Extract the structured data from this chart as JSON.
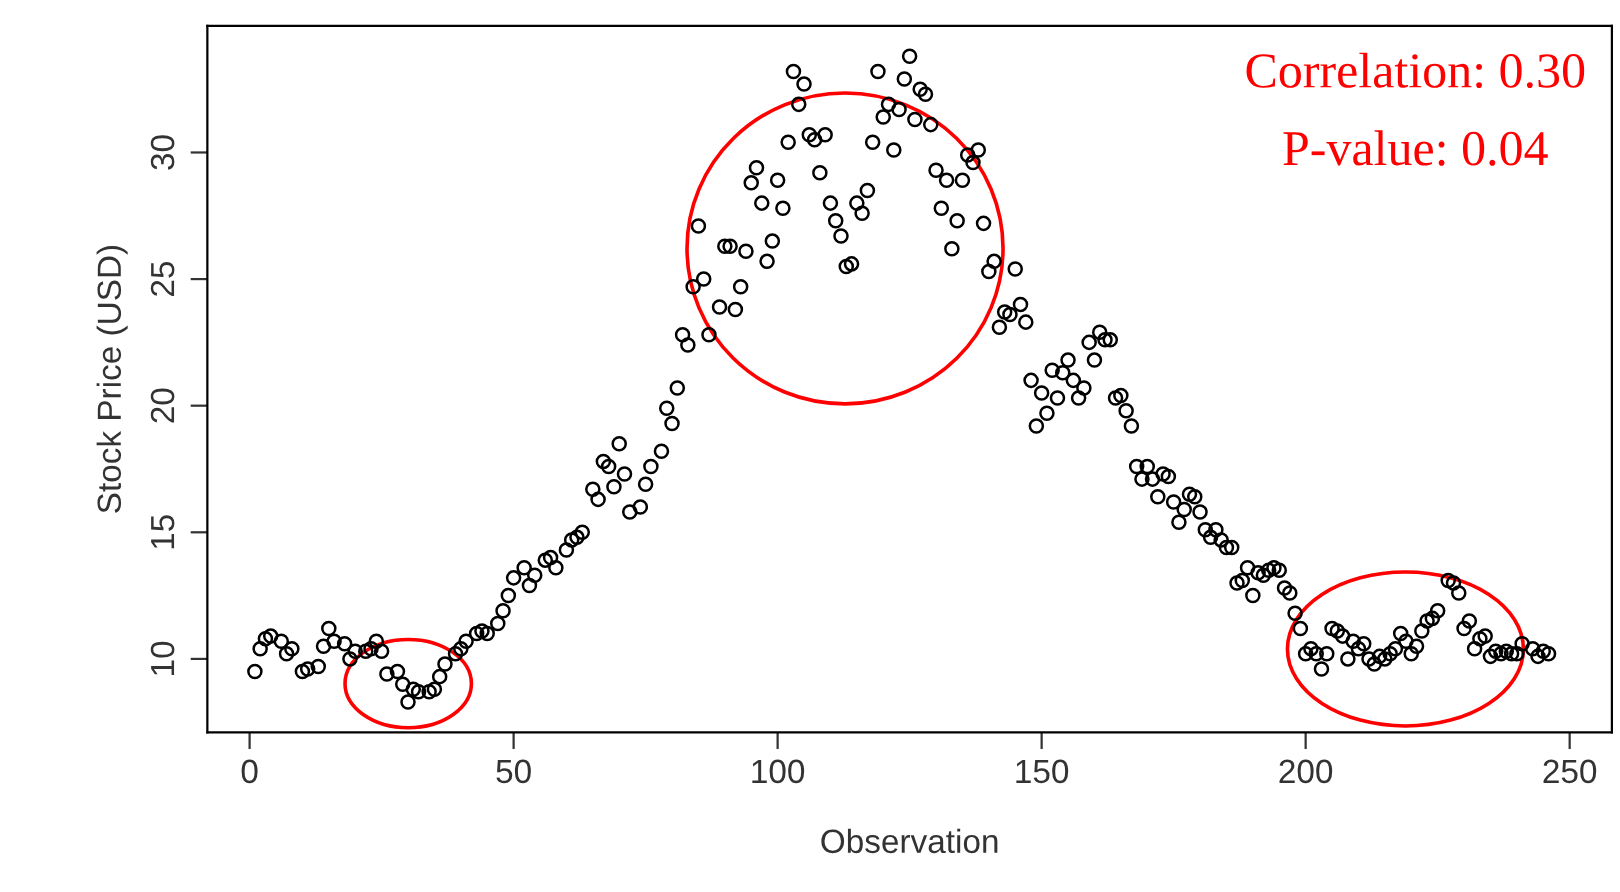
{
  "chart_data": {
    "type": "scatter",
    "xlabel": "Observation",
    "ylabel": "Stock Price (USD)",
    "annotations": [
      "Correlation: 0.30",
      "P-value: 0.04"
    ],
    "xlim": [
      -8,
      258
    ],
    "ylim": [
      7.1,
      35
    ],
    "xticks": [
      0,
      50,
      100,
      150,
      200,
      250
    ],
    "yticks": [
      10,
      15,
      20,
      25,
      30
    ],
    "marker": "circle",
    "grid": false,
    "series": [
      {
        "color": "#000000",
        "x": [
          1,
          2,
          3,
          4,
          6,
          7,
          8,
          10,
          11,
          13,
          14,
          15,
          16,
          18,
          19,
          20,
          22,
          23,
          24,
          25,
          26,
          28,
          29,
          30,
          31,
          32,
          34,
          35,
          36,
          37,
          39,
          40,
          41,
          43,
          44,
          45,
          47,
          48,
          49,
          50,
          52,
          53,
          54,
          56,
          57,
          58,
          60,
          61,
          62,
          63,
          65,
          66,
          67,
          68,
          69,
          70,
          71,
          72,
          74,
          75,
          76,
          78,
          79,
          80,
          81,
          82,
          83,
          84,
          85,
          86,
          87,
          89,
          90,
          91,
          92,
          93,
          94,
          95,
          96,
          97,
          98,
          99,
          100,
          101,
          102,
          103,
          104,
          105,
          106,
          107,
          108,
          109,
          110,
          111,
          112,
          113,
          114,
          115,
          116,
          117,
          118,
          119,
          120,
          121,
          122,
          123,
          124,
          125,
          126,
          127,
          128,
          129,
          130,
          131,
          132,
          133,
          134,
          135,
          136,
          137,
          138,
          139,
          140,
          141,
          142,
          143,
          144,
          145,
          146,
          147,
          148,
          149,
          150,
          151,
          152,
          153,
          154,
          155,
          156,
          157,
          158,
          159,
          160,
          161,
          162,
          163,
          164,
          165,
          166,
          167,
          168,
          169,
          170,
          171,
          172,
          173,
          174,
          175,
          176,
          177,
          178,
          179,
          180,
          181,
          182,
          183,
          184,
          185,
          186,
          187,
          188,
          189,
          190,
          191,
          192,
          193,
          194,
          195,
          196,
          197,
          198,
          199,
          200,
          201,
          202,
          203,
          204,
          205,
          206,
          207,
          208,
          209,
          210,
          211,
          212,
          213,
          214,
          215,
          216,
          217,
          218,
          219,
          220,
          221,
          222,
          223,
          224,
          225,
          227,
          228,
          229,
          230,
          231,
          232,
          233,
          234,
          235,
          236,
          237,
          238,
          239,
          240,
          241,
          243,
          244,
          245,
          246
        ],
        "values": [
          9.5,
          10.4,
          10.8,
          10.9,
          10.7,
          10.2,
          10.4,
          9.5,
          9.6,
          9.7,
          10.5,
          11.2,
          10.7,
          10.6,
          10.0,
          10.3,
          10.3,
          10.4,
          10.7,
          10.3,
          9.4,
          9.5,
          9.0,
          8.3,
          8.8,
          8.7,
          8.7,
          8.8,
          9.3,
          9.8,
          10.2,
          10.4,
          10.7,
          11.0,
          11.1,
          11.0,
          11.4,
          11.9,
          12.5,
          13.2,
          13.6,
          12.9,
          13.3,
          13.9,
          14.0,
          13.6,
          14.3,
          14.7,
          14.8,
          15.0,
          16.7,
          16.3,
          17.8,
          17.6,
          16.8,
          18.5,
          17.3,
          15.8,
          16.0,
          16.9,
          17.6,
          18.2,
          19.9,
          19.3,
          20.7,
          22.8,
          22.4,
          24.7,
          27.1,
          25.0,
          22.8,
          23.9,
          26.3,
          26.3,
          23.8,
          24.7,
          26.1,
          28.8,
          29.4,
          28.0,
          25.7,
          26.5,
          28.9,
          27.8,
          30.4,
          33.2,
          31.9,
          32.7,
          30.7,
          30.5,
          29.2,
          30.7,
          28.0,
          27.3,
          26.7,
          25.5,
          25.6,
          28.0,
          27.6,
          28.5,
          30.4,
          33.2,
          31.4,
          31.9,
          30.1,
          31.7,
          32.9,
          33.8,
          31.3,
          32.5,
          32.3,
          31.1,
          29.3,
          27.8,
          28.9,
          26.2,
          27.3,
          28.9,
          29.9,
          29.6,
          30.1,
          27.2,
          25.3,
          25.7,
          23.1,
          23.7,
          23.6,
          25.4,
          24.0,
          23.3,
          21.0,
          19.2,
          20.5,
          19.7,
          21.4,
          20.3,
          21.3,
          21.8,
          21.0,
          20.3,
          20.7,
          22.5,
          21.8,
          22.9,
          22.6,
          22.6,
          20.3,
          20.4,
          19.8,
          19.2,
          17.6,
          17.1,
          17.6,
          17.1,
          16.4,
          17.3,
          17.2,
          16.2,
          15.4,
          15.9,
          16.5,
          16.4,
          15.8,
          15.1,
          14.8,
          15.1,
          14.7,
          14.4,
          14.4,
          13.0,
          13.1,
          13.6,
          12.5,
          13.4,
          13.3,
          13.5,
          13.6,
          13.5,
          12.8,
          12.6,
          11.8,
          11.2,
          10.2,
          10.4,
          10.2,
          9.6,
          10.2,
          11.2,
          11.1,
          10.9,
          10.0,
          10.7,
          10.4,
          10.6,
          10.0,
          9.8,
          10.1,
          10.0,
          10.2,
          10.4,
          11.0,
          10.7,
          10.2,
          10.5,
          11.1,
          11.5,
          11.6,
          11.9,
          13.1,
          13.0,
          12.6,
          11.2,
          11.5,
          10.4,
          10.8,
          10.9,
          10.1,
          10.3,
          10.2,
          10.3,
          10.2,
          10.2,
          10.6,
          10.4,
          10.1,
          10.3,
          10.2
        ]
      }
    ]
  }
}
